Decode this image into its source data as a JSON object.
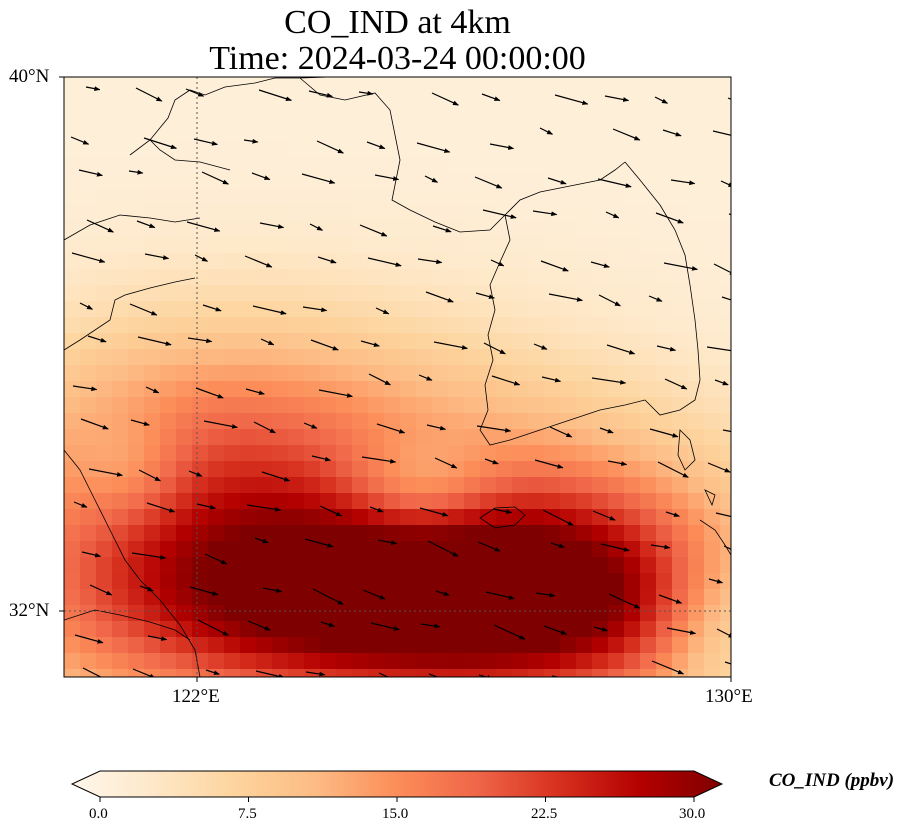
{
  "title_line1": "CO_IND at 4km",
  "title_line2": "Time: 2024-03-24 00:00:00",
  "lat_labels": [
    "40°N",
    "32°N"
  ],
  "lon_labels": [
    "122°E",
    "130°E"
  ],
  "colorbar": {
    "label": "CO_IND (ppbv)",
    "ticks": [
      "0.0",
      "7.5",
      "15.0",
      "22.5",
      "30.0"
    ],
    "range": [
      0,
      30
    ],
    "colormap": "OrRd",
    "colors": [
      "#fff7ec",
      "#fee8c8",
      "#fdd49e",
      "#fdbb84",
      "#fc8d59",
      "#ef6548",
      "#d7301f",
      "#b30000",
      "#7f0000"
    ]
  },
  "chart_data": {
    "type": "heatmap",
    "variable": "CO_IND",
    "units": "ppbv",
    "time": "2024-03-24 00:00:00",
    "level": "4km",
    "lon_range": [
      120,
      130
    ],
    "lat_range": [
      31,
      40
    ],
    "gridlines": {
      "lon": [
        122
      ],
      "lat": [
        32
      ]
    },
    "overlay": "wind vectors, predominantly westerly",
    "high_concentration_zone": "south of Korean Peninsula near Jeju Island, max ~30 ppbv"
  }
}
